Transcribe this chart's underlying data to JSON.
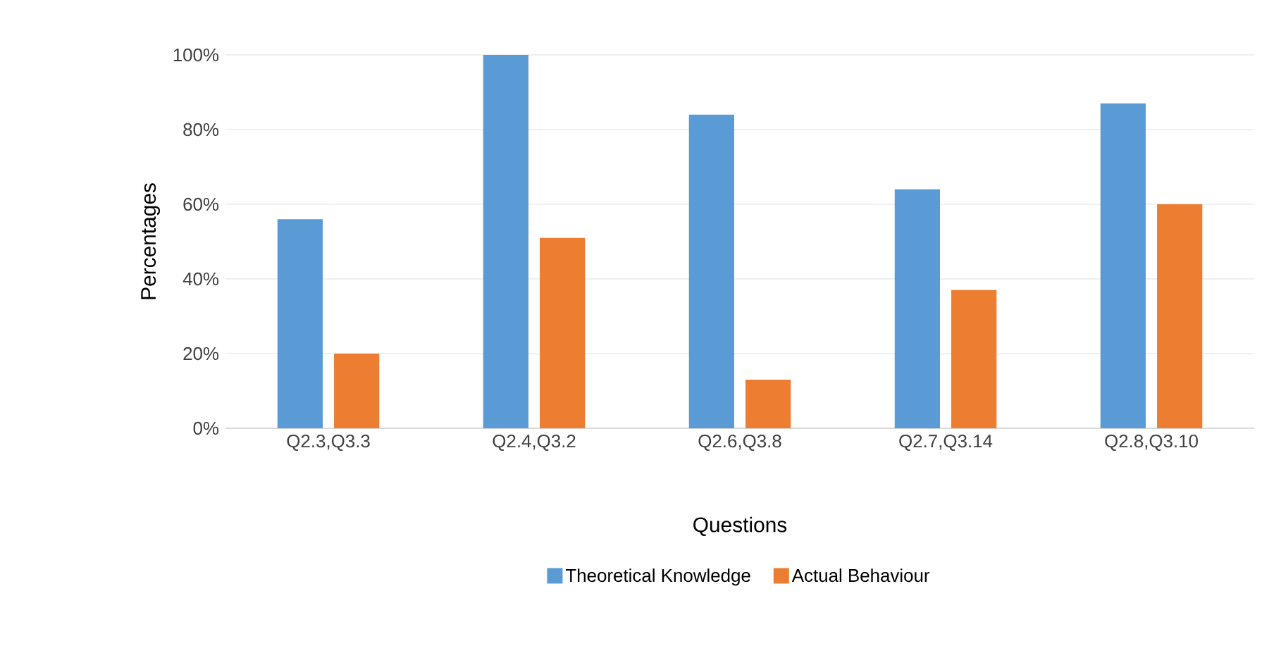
{
  "chart_data": {
    "type": "bar",
    "xlabel": "Questions",
    "ylabel": "Percentages",
    "categories": [
      "Q2.3,Q3.3",
      "Q2.4,Q3.2",
      "Q2.6,Q3.8",
      "Q2.7,Q3.14",
      "Q2.8,Q3.10"
    ],
    "series": [
      {
        "name": "Theoretical Knowledge",
        "color": "#5b9bd5",
        "values": [
          56,
          100,
          84,
          64,
          87
        ]
      },
      {
        "name": "Actual Behaviour",
        "color": "#ed7d31",
        "values": [
          20,
          51,
          13,
          37,
          60
        ]
      }
    ],
    "ylim": [
      0,
      100
    ],
    "yticks": [
      {
        "value": 0,
        "label": "0%"
      },
      {
        "value": 20,
        "label": "20%"
      },
      {
        "value": 40,
        "label": "40%"
      },
      {
        "value": 60,
        "label": "60%"
      },
      {
        "value": 80,
        "label": "80%"
      },
      {
        "value": 100,
        "label": "100%"
      }
    ],
    "grid": "y",
    "legend": "bottom"
  }
}
